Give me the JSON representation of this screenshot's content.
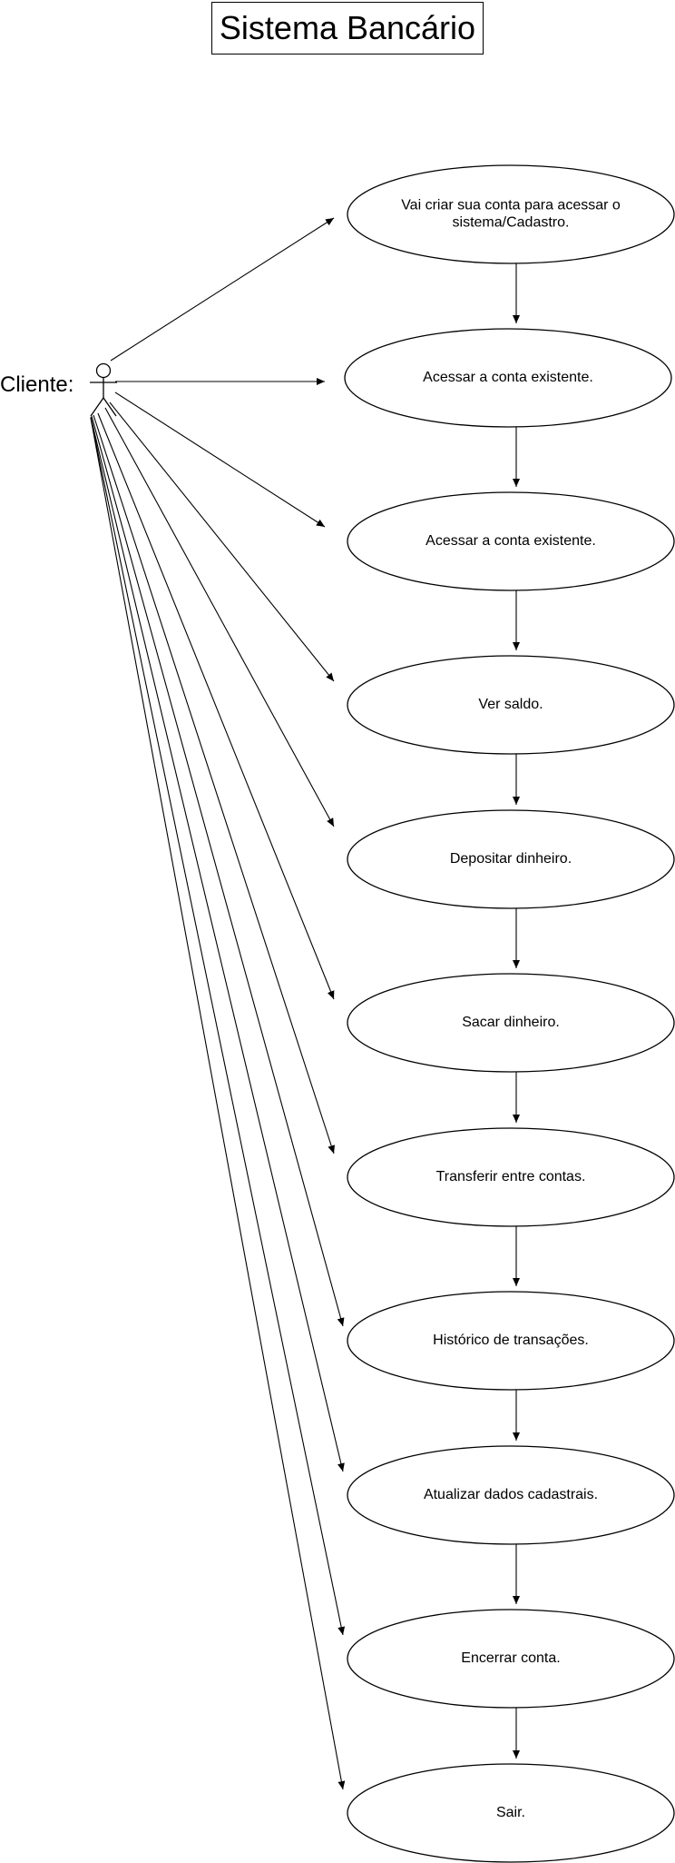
{
  "title": "Sistema Bancário",
  "actor": {
    "label": "Cliente:"
  },
  "use_cases": [
    {
      "lines": [
        "Vai criar sua conta para acessar o",
        "sistema/Cadastro."
      ]
    },
    {
      "lines": [
        "Acessar a conta existente."
      ]
    },
    {
      "lines": [
        "Acessar a conta existente."
      ]
    },
    {
      "lines": [
        "Ver saldo."
      ]
    },
    {
      "lines": [
        "Depositar dinheiro."
      ]
    },
    {
      "lines": [
        "Sacar dinheiro."
      ]
    },
    {
      "lines": [
        "Transferir entre contas."
      ]
    },
    {
      "lines": [
        "Histórico de transações."
      ]
    },
    {
      "lines": [
        "Atualizar dados cadastrais."
      ]
    },
    {
      "lines": [
        "Encerrar conta."
      ]
    },
    {
      "lines": [
        "Sair."
      ]
    }
  ]
}
